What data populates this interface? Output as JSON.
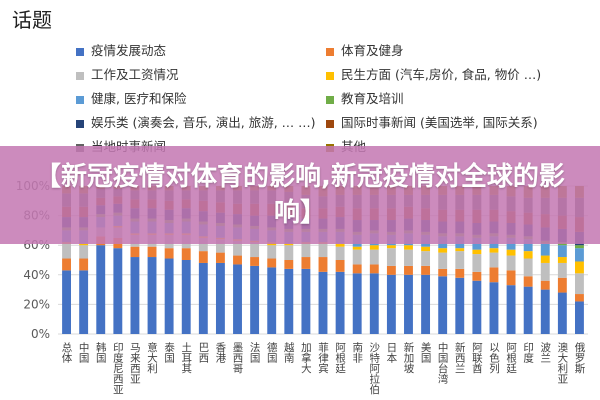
{
  "header": {
    "title": "话题"
  },
  "banner": {
    "text": "【新冠疫情对体育的影响,新冠疫情对全球的影响】"
  },
  "chart_data": {
    "type": "bar",
    "stacked": true,
    "ylim": [
      0,
      100
    ],
    "yticks": [
      "0%",
      "20%",
      "40%",
      "60%",
      "80%",
      "100%"
    ],
    "categories": [
      "总体",
      "中国",
      "韩国",
      "印度尼西亚",
      "马来西亚",
      "意大利",
      "泰国",
      "土耳其",
      "巴西",
      "香港",
      "墨西哥",
      "法国",
      "德国",
      "越南",
      "加拿大",
      "菲律宾",
      "阿根廷",
      "南非",
      "沙特阿拉伯",
      "日本",
      "新加坡",
      "美国",
      "中国台湾",
      "新西兰",
      "阿联酋",
      "以色列",
      "阿根廷",
      "印度",
      "波兰",
      "澳大利亚",
      "俄罗斯"
    ],
    "series": [
      {
        "name": "疫情发展动态",
        "color": "#4472C4",
        "values": [
          43,
          43,
          60,
          58,
          52,
          52,
          51,
          50,
          48,
          48,
          47,
          46,
          45,
          44,
          44,
          42,
          42,
          41,
          41,
          40,
          40,
          40,
          39,
          38,
          36,
          35,
          33,
          32,
          30,
          28,
          22
        ]
      },
      {
        "name": "体育及健身",
        "color": "#ED7D31",
        "values": [
          8,
          8,
          6,
          7,
          7,
          7,
          7,
          8,
          8,
          7,
          6,
          6,
          6,
          6,
          8,
          10,
          8,
          6,
          6,
          6,
          6,
          6,
          5,
          6,
          6,
          10,
          10,
          7,
          6,
          10,
          5
        ]
      },
      {
        "name": "工作及工资情况",
        "color": "#BFBFBF",
        "values": [
          10,
          9,
          6,
          7,
          8,
          8,
          9,
          9,
          9,
          9,
          10,
          10,
          9,
          10,
          9,
          9,
          9,
          10,
          10,
          12,
          11,
          10,
          11,
          12,
          12,
          10,
          10,
          12,
          12,
          10,
          14
        ]
      },
      {
        "name": "民生方面 (汽车,房价, 食品, 物价 …)",
        "color": "#FFC000",
        "values": [
          1,
          1,
          0,
          1,
          1,
          1,
          1,
          1,
          1,
          1,
          1,
          1,
          2,
          1,
          1,
          1,
          2,
          2,
          3,
          2,
          3,
          3,
          3,
          2,
          3,
          3,
          4,
          5,
          5,
          4,
          8
        ]
      },
      {
        "name": "健康, 医疗和保险",
        "color": "#5B9BD5",
        "values": [
          8,
          9,
          7,
          7,
          8,
          8,
          7,
          8,
          8,
          8,
          8,
          8,
          8,
          8,
          7,
          7,
          8,
          8,
          8,
          7,
          8,
          8,
          8,
          8,
          8,
          8,
          8,
          8,
          8,
          8,
          9
        ]
      },
      {
        "name": "教育及培训",
        "color": "#70AD47",
        "values": [
          2,
          2,
          2,
          2,
          2,
          2,
          2,
          2,
          2,
          2,
          2,
          2,
          2,
          2,
          2,
          2,
          2,
          2,
          2,
          2,
          2,
          2,
          2,
          2,
          2,
          2,
          2,
          2,
          2,
          2,
          2
        ]
      },
      {
        "name": "娱乐类 (演奏会, 音乐, 演出, 旅游, … …)",
        "color": "#264478",
        "values": [
          7,
          7,
          6,
          6,
          7,
          7,
          7,
          7,
          7,
          7,
          7,
          7,
          8,
          8,
          7,
          7,
          8,
          8,
          7,
          8,
          8,
          8,
          8,
          8,
          8,
          8,
          8,
          8,
          9,
          9,
          9
        ]
      },
      {
        "name": "国际时事新闻 (美国选举, 国际关系)",
        "color": "#9E480E",
        "values": [
          7,
          7,
          5,
          5,
          6,
          6,
          6,
          6,
          7,
          7,
          7,
          8,
          8,
          8,
          7,
          7,
          7,
          8,
          8,
          8,
          8,
          8,
          8,
          8,
          9,
          8,
          8,
          8,
          9,
          9,
          10
        ]
      },
      {
        "name": "当地时事新闻",
        "color": "#636363",
        "values": [
          9,
          9,
          6,
          5,
          6,
          6,
          7,
          6,
          7,
          8,
          9,
          9,
          9,
          9,
          9,
          8,
          8,
          9,
          9,
          9,
          8,
          9,
          10,
          10,
          10,
          10,
          10,
          10,
          11,
          12,
          13
        ]
      },
      {
        "name": "其他",
        "color": "#997300",
        "values": [
          5,
          5,
          2,
          2,
          3,
          3,
          3,
          3,
          3,
          3,
          3,
          3,
          3,
          4,
          6,
          7,
          6,
          6,
          6,
          6,
          6,
          6,
          6,
          6,
          6,
          6,
          7,
          8,
          8,
          8,
          8
        ]
      }
    ]
  }
}
